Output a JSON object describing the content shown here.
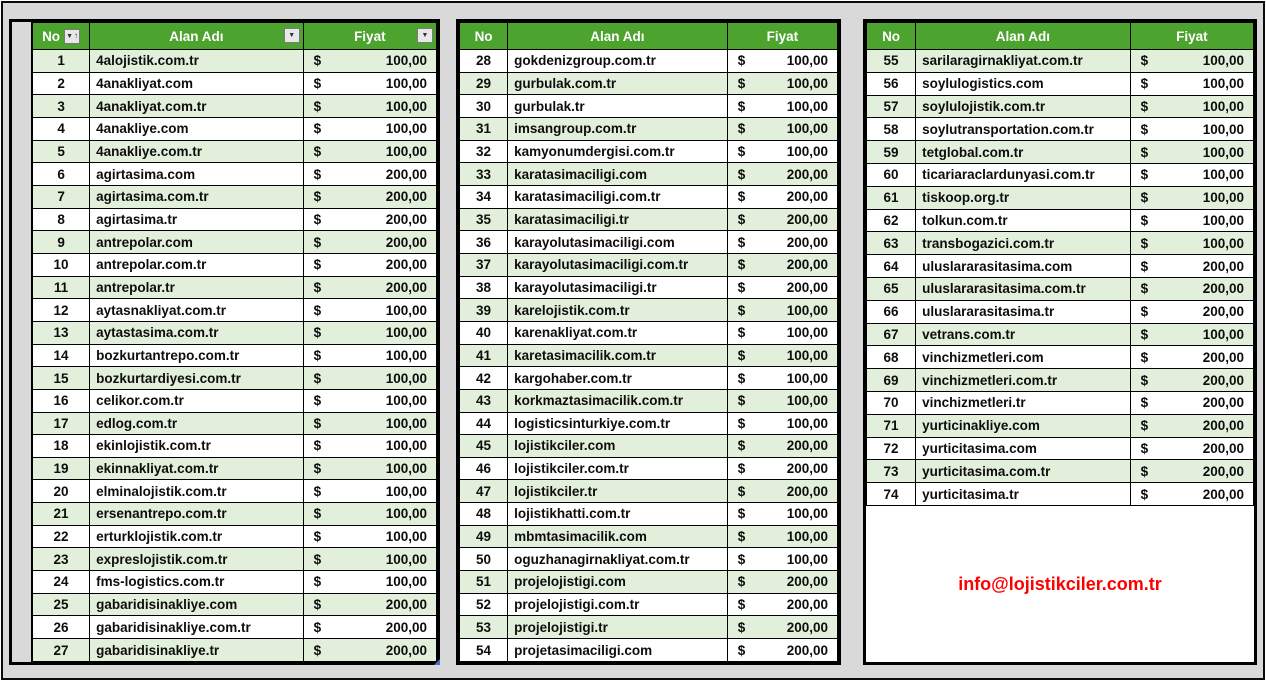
{
  "columns": {
    "no": "No",
    "domain": "Alan Adı",
    "price": "Fiyat"
  },
  "currency_symbol": "$",
  "icons": {
    "filter_dropdown": "▼",
    "sort_ascending": "↑"
  },
  "contact_email": "info@lojistikciler.com.tr",
  "colors": {
    "header_green": "#4ca32e",
    "row_green": "#e2efda",
    "row_white": "#ffffff",
    "background_gray": "#d9d9d9",
    "email_red": "#ff0000",
    "border_black": "#000000"
  },
  "tables": [
    {
      "rows": [
        {
          "no": 1,
          "domain": "4alojistik.com.tr",
          "price": "100,00"
        },
        {
          "no": 2,
          "domain": "4anakliyat.com",
          "price": "100,00"
        },
        {
          "no": 3,
          "domain": "4anakliyat.com.tr",
          "price": "100,00"
        },
        {
          "no": 4,
          "domain": "4anakliye.com",
          "price": "100,00"
        },
        {
          "no": 5,
          "domain": "4anakliye.com.tr",
          "price": "100,00"
        },
        {
          "no": 6,
          "domain": "agirtasima.com",
          "price": "200,00"
        },
        {
          "no": 7,
          "domain": "agirtasima.com.tr",
          "price": "200,00"
        },
        {
          "no": 8,
          "domain": "agirtasima.tr",
          "price": "200,00"
        },
        {
          "no": 9,
          "domain": "antrepolar.com",
          "price": "200,00"
        },
        {
          "no": 10,
          "domain": "antrepolar.com.tr",
          "price": "200,00"
        },
        {
          "no": 11,
          "domain": "antrepolar.tr",
          "price": "200,00"
        },
        {
          "no": 12,
          "domain": "aytasnakliyat.com.tr",
          "price": "100,00"
        },
        {
          "no": 13,
          "domain": "aytastasima.com.tr",
          "price": "100,00"
        },
        {
          "no": 14,
          "domain": "bozkurtantrepo.com.tr",
          "price": "100,00"
        },
        {
          "no": 15,
          "domain": "bozkurtardiyesi.com.tr",
          "price": "100,00"
        },
        {
          "no": 16,
          "domain": "celikor.com.tr",
          "price": "100,00"
        },
        {
          "no": 17,
          "domain": "edlog.com.tr",
          "price": "100,00"
        },
        {
          "no": 18,
          "domain": "ekinlojistik.com.tr",
          "price": "100,00"
        },
        {
          "no": 19,
          "domain": "ekinnakliyat.com.tr",
          "price": "100,00"
        },
        {
          "no": 20,
          "domain": "elminalojistik.com.tr",
          "price": "100,00"
        },
        {
          "no": 21,
          "domain": "ersenantrepo.com.tr",
          "price": "100,00"
        },
        {
          "no": 22,
          "domain": "erturklojistik.com.tr",
          "price": "100,00"
        },
        {
          "no": 23,
          "domain": "expreslojistik.com.tr",
          "price": "100,00"
        },
        {
          "no": 24,
          "domain": "fms-logistics.com.tr",
          "price": "100,00"
        },
        {
          "no": 25,
          "domain": "gabaridisinakliye.com",
          "price": "200,00"
        },
        {
          "no": 26,
          "domain": "gabaridisinakliye.com.tr",
          "price": "200,00"
        },
        {
          "no": 27,
          "domain": "gabaridisinakliye.tr",
          "price": "200,00"
        }
      ]
    },
    {
      "rows": [
        {
          "no": 28,
          "domain": "gokdenizgroup.com.tr",
          "price": "100,00"
        },
        {
          "no": 29,
          "domain": "gurbulak.com.tr",
          "price": "100,00"
        },
        {
          "no": 30,
          "domain": "gurbulak.tr",
          "price": "100,00"
        },
        {
          "no": 31,
          "domain": "imsangroup.com.tr",
          "price": "100,00"
        },
        {
          "no": 32,
          "domain": "kamyonumdergisi.com.tr",
          "price": "100,00"
        },
        {
          "no": 33,
          "domain": "karatasimaciligi.com",
          "price": "200,00"
        },
        {
          "no": 34,
          "domain": "karatasimaciligi.com.tr",
          "price": "200,00"
        },
        {
          "no": 35,
          "domain": "karatasimaciligi.tr",
          "price": "200,00"
        },
        {
          "no": 36,
          "domain": "karayolutasimaciligi.com",
          "price": "200,00"
        },
        {
          "no": 37,
          "domain": "karayolutasimaciligi.com.tr",
          "price": "200,00"
        },
        {
          "no": 38,
          "domain": "karayolutasimaciligi.tr",
          "price": "200,00"
        },
        {
          "no": 39,
          "domain": "karelojistik.com.tr",
          "price": "100,00"
        },
        {
          "no": 40,
          "domain": "karenakliyat.com.tr",
          "price": "100,00"
        },
        {
          "no": 41,
          "domain": "karetasimacilik.com.tr",
          "price": "100,00"
        },
        {
          "no": 42,
          "domain": "kargohaber.com.tr",
          "price": "100,00"
        },
        {
          "no": 43,
          "domain": "korkmaztasimacilik.com.tr",
          "price": "100,00"
        },
        {
          "no": 44,
          "domain": "logisticsinturkiye.com.tr",
          "price": "100,00"
        },
        {
          "no": 45,
          "domain": "lojistikciler.com",
          "price": "200,00"
        },
        {
          "no": 46,
          "domain": "lojistikciler.com.tr",
          "price": "200,00"
        },
        {
          "no": 47,
          "domain": "lojistikciler.tr",
          "price": "200,00"
        },
        {
          "no": 48,
          "domain": "lojistikhatti.com.tr",
          "price": "100,00"
        },
        {
          "no": 49,
          "domain": "mbmtasimacilik.com",
          "price": "100,00"
        },
        {
          "no": 50,
          "domain": "oguzhanagirnakliyat.com.tr",
          "price": "100,00"
        },
        {
          "no": 51,
          "domain": "projelojistigi.com",
          "price": "200,00"
        },
        {
          "no": 52,
          "domain": "projelojistigi.com.tr",
          "price": "200,00"
        },
        {
          "no": 53,
          "domain": "projelojistigi.tr",
          "price": "200,00"
        },
        {
          "no": 54,
          "domain": "projetasimaciligi.com",
          "price": "200,00"
        }
      ]
    },
    {
      "rows": [
        {
          "no": 55,
          "domain": "sarilaragirnakliyat.com.tr",
          "price": "100,00"
        },
        {
          "no": 56,
          "domain": "soylulogistics.com",
          "price": "100,00"
        },
        {
          "no": 57,
          "domain": "soylulojistik.com.tr",
          "price": "100,00"
        },
        {
          "no": 58,
          "domain": "soylutransportation.com.tr",
          "price": "100,00"
        },
        {
          "no": 59,
          "domain": "tetglobal.com.tr",
          "price": "100,00"
        },
        {
          "no": 60,
          "domain": "ticariaraclardunyasi.com.tr",
          "price": "100,00"
        },
        {
          "no": 61,
          "domain": "tiskoop.org.tr",
          "price": "100,00"
        },
        {
          "no": 62,
          "domain": "tolkun.com.tr",
          "price": "100,00"
        },
        {
          "no": 63,
          "domain": "transbogazici.com.tr",
          "price": "100,00"
        },
        {
          "no": 64,
          "domain": "uluslararasitasima.com",
          "price": "200,00"
        },
        {
          "no": 65,
          "domain": "uluslararasitasima.com.tr",
          "price": "200,00"
        },
        {
          "no": 66,
          "domain": "uluslararasitasima.tr",
          "price": "200,00"
        },
        {
          "no": 67,
          "domain": "vetrans.com.tr",
          "price": "100,00"
        },
        {
          "no": 68,
          "domain": "vinchizmetleri.com",
          "price": "200,00"
        },
        {
          "no": 69,
          "domain": "vinchizmetleri.com.tr",
          "price": "200,00"
        },
        {
          "no": 70,
          "domain": "vinchizmetleri.tr",
          "price": "200,00"
        },
        {
          "no": 71,
          "domain": "yurticinakliye.com",
          "price": "200,00"
        },
        {
          "no": 72,
          "domain": "yurticitasima.com",
          "price": "200,00"
        },
        {
          "no": 73,
          "domain": "yurticitasima.com.tr",
          "price": "200,00"
        },
        {
          "no": 74,
          "domain": "yurticitasima.tr",
          "price": "200,00"
        }
      ]
    }
  ]
}
